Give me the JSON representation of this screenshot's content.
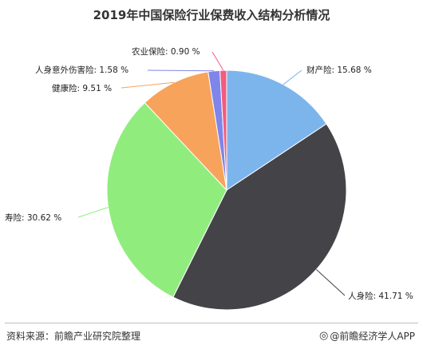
{
  "chart_data": {
    "type": "pie",
    "title": "2019年中国保险行业保费收入结构分析情况",
    "slices": [
      {
        "name": "财产险",
        "value": 15.68,
        "label": "财产险: 15.68 %",
        "color": "#7cb5ec"
      },
      {
        "name": "人身险",
        "value": 41.71,
        "label": "人身险: 41.71 %",
        "color": "#434348"
      },
      {
        "name": "寿险",
        "value": 30.62,
        "label": "寿险: 30.62 %",
        "color": "#90ed7d"
      },
      {
        "name": "健康险",
        "value": 9.51,
        "label": "健康险: 9.51 %",
        "color": "#f7a35c"
      },
      {
        "name": "人身意外伤害险",
        "value": 1.58,
        "label": "人身意外伤害险: 1.58 %",
        "color": "#8085e9"
      },
      {
        "name": "农业保险",
        "value": 0.9,
        "label": "农业保险: 0.90 %",
        "color": "#f15c80"
      }
    ],
    "legend": "none"
  },
  "footer": {
    "source": "资料来源：前瞻产业研究院整理",
    "brand": "@前瞻经济学人APP",
    "brand_icon": "brand-logo-icon"
  }
}
